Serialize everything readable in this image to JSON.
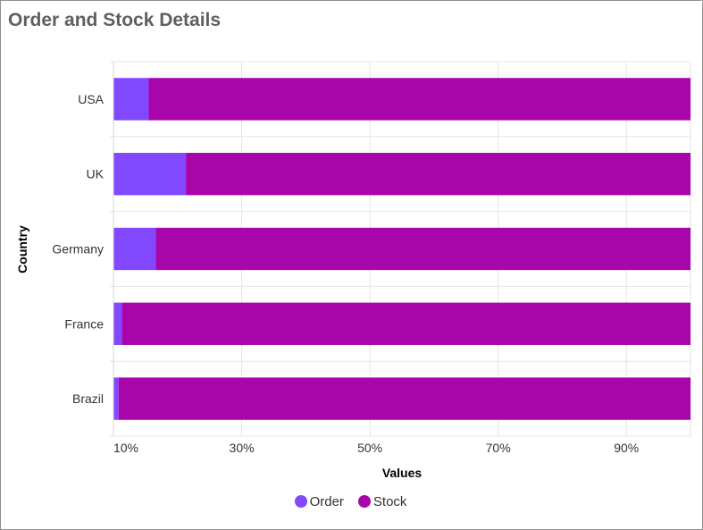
{
  "page": {
    "title": "Order and Stock Details"
  },
  "colors": {
    "order": "#8148fd",
    "stock": "#a805ab",
    "grid": "#e5e5e5",
    "axis_text": "#333333",
    "title": "#5f5f5f"
  },
  "chart_data": {
    "type": "bar",
    "orientation": "horizontal",
    "stacking": "100%",
    "title": "Order and Stock Details",
    "xlabel": "Values",
    "ylabel": "Country",
    "categories": [
      "USA",
      "UK",
      "Germany",
      "France",
      "Brazil"
    ],
    "series": [
      {
        "name": "Order",
        "color": "#8148fd",
        "values": [
          15.5,
          21.3,
          16.6,
          11.3,
          10.8
        ]
      },
      {
        "name": "Stock",
        "color": "#a805ab",
        "values": [
          84.5,
          78.7,
          83.4,
          88.7,
          89.2
        ]
      }
    ],
    "xlim": [
      10,
      100
    ],
    "xticks": [
      10,
      30,
      50,
      70,
      90
    ],
    "xtick_labels": [
      "10%",
      "30%",
      "50%",
      "70%",
      "90%"
    ],
    "grid": true,
    "legend": "bottom-center"
  }
}
